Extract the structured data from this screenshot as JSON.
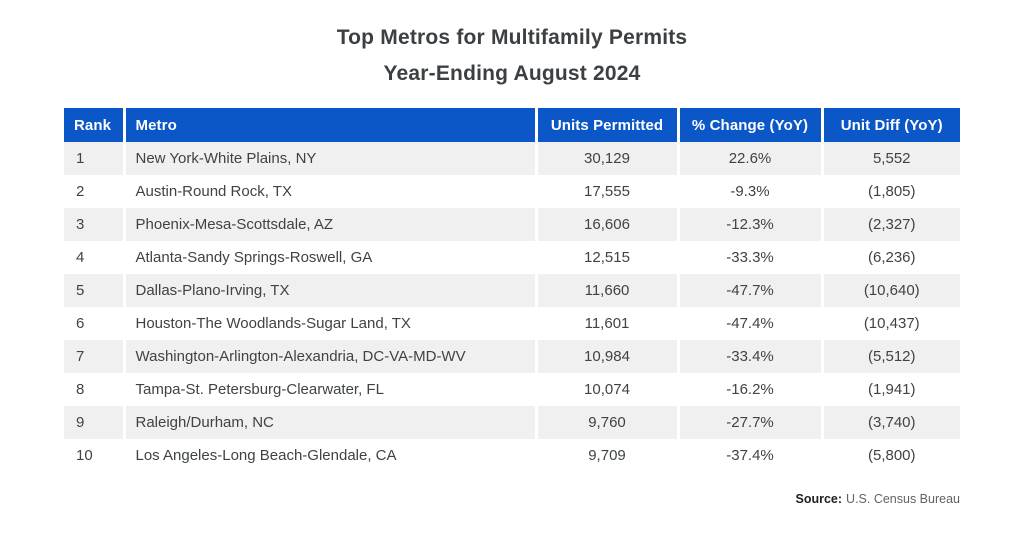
{
  "title": {
    "line1": "Top Metros for Multifamily Permits",
    "line2": "Year-Ending August 2024"
  },
  "source": {
    "label": "Source:",
    "text": "U.S. Census Bureau"
  },
  "colors": {
    "header_bg": "#0B57C8",
    "header_text": "#FFFFFF",
    "row_alt_bg": "#F0F0F0",
    "row_bg": "#FFFFFF",
    "body_text": "#3E4347",
    "title_text": "#3C4043",
    "source_label_text": "#202124",
    "source_text": "#5F6368"
  },
  "chart_data": {
    "type": "table",
    "title": "Top Metros for Multifamily Permits — Year-Ending August 2024",
    "columns": [
      "Rank",
      "Metro",
      "Units Permitted",
      "% Change (YoY)",
      "Unit Diff (YoY)"
    ],
    "rows": [
      [
        "1",
        "New York-White Plains, NY",
        "30,129",
        "22.6%",
        "5,552"
      ],
      [
        "2",
        "Austin-Round Rock, TX",
        "17,555",
        "-9.3%",
        "(1,805)"
      ],
      [
        "3",
        "Phoenix-Mesa-Scottsdale, AZ",
        "16,606",
        "-12.3%",
        "(2,327)"
      ],
      [
        "4",
        "Atlanta-Sandy Springs-Roswell, GA",
        "12,515",
        "-33.3%",
        "(6,236)"
      ],
      [
        "5",
        "Dallas-Plano-Irving, TX",
        "11,660",
        "-47.7%",
        "(10,640)"
      ],
      [
        "6",
        "Houston-The Woodlands-Sugar Land, TX",
        "11,601",
        "-47.4%",
        "(10,437)"
      ],
      [
        "7",
        "Washington-Arlington-Alexandria, DC-VA-MD-WV",
        "10,984",
        "-33.4%",
        "(5,512)"
      ],
      [
        "8",
        "Tampa-St. Petersburg-Clearwater, FL",
        "10,074",
        "-16.2%",
        "(1,941)"
      ],
      [
        "9",
        "Raleigh/Durham, NC",
        "9,760",
        "-27.7%",
        "(3,740)"
      ],
      [
        "10",
        "Los Angeles-Long Beach-Glendale, CA",
        "9,709",
        "-37.4%",
        "(5,800)"
      ]
    ]
  }
}
